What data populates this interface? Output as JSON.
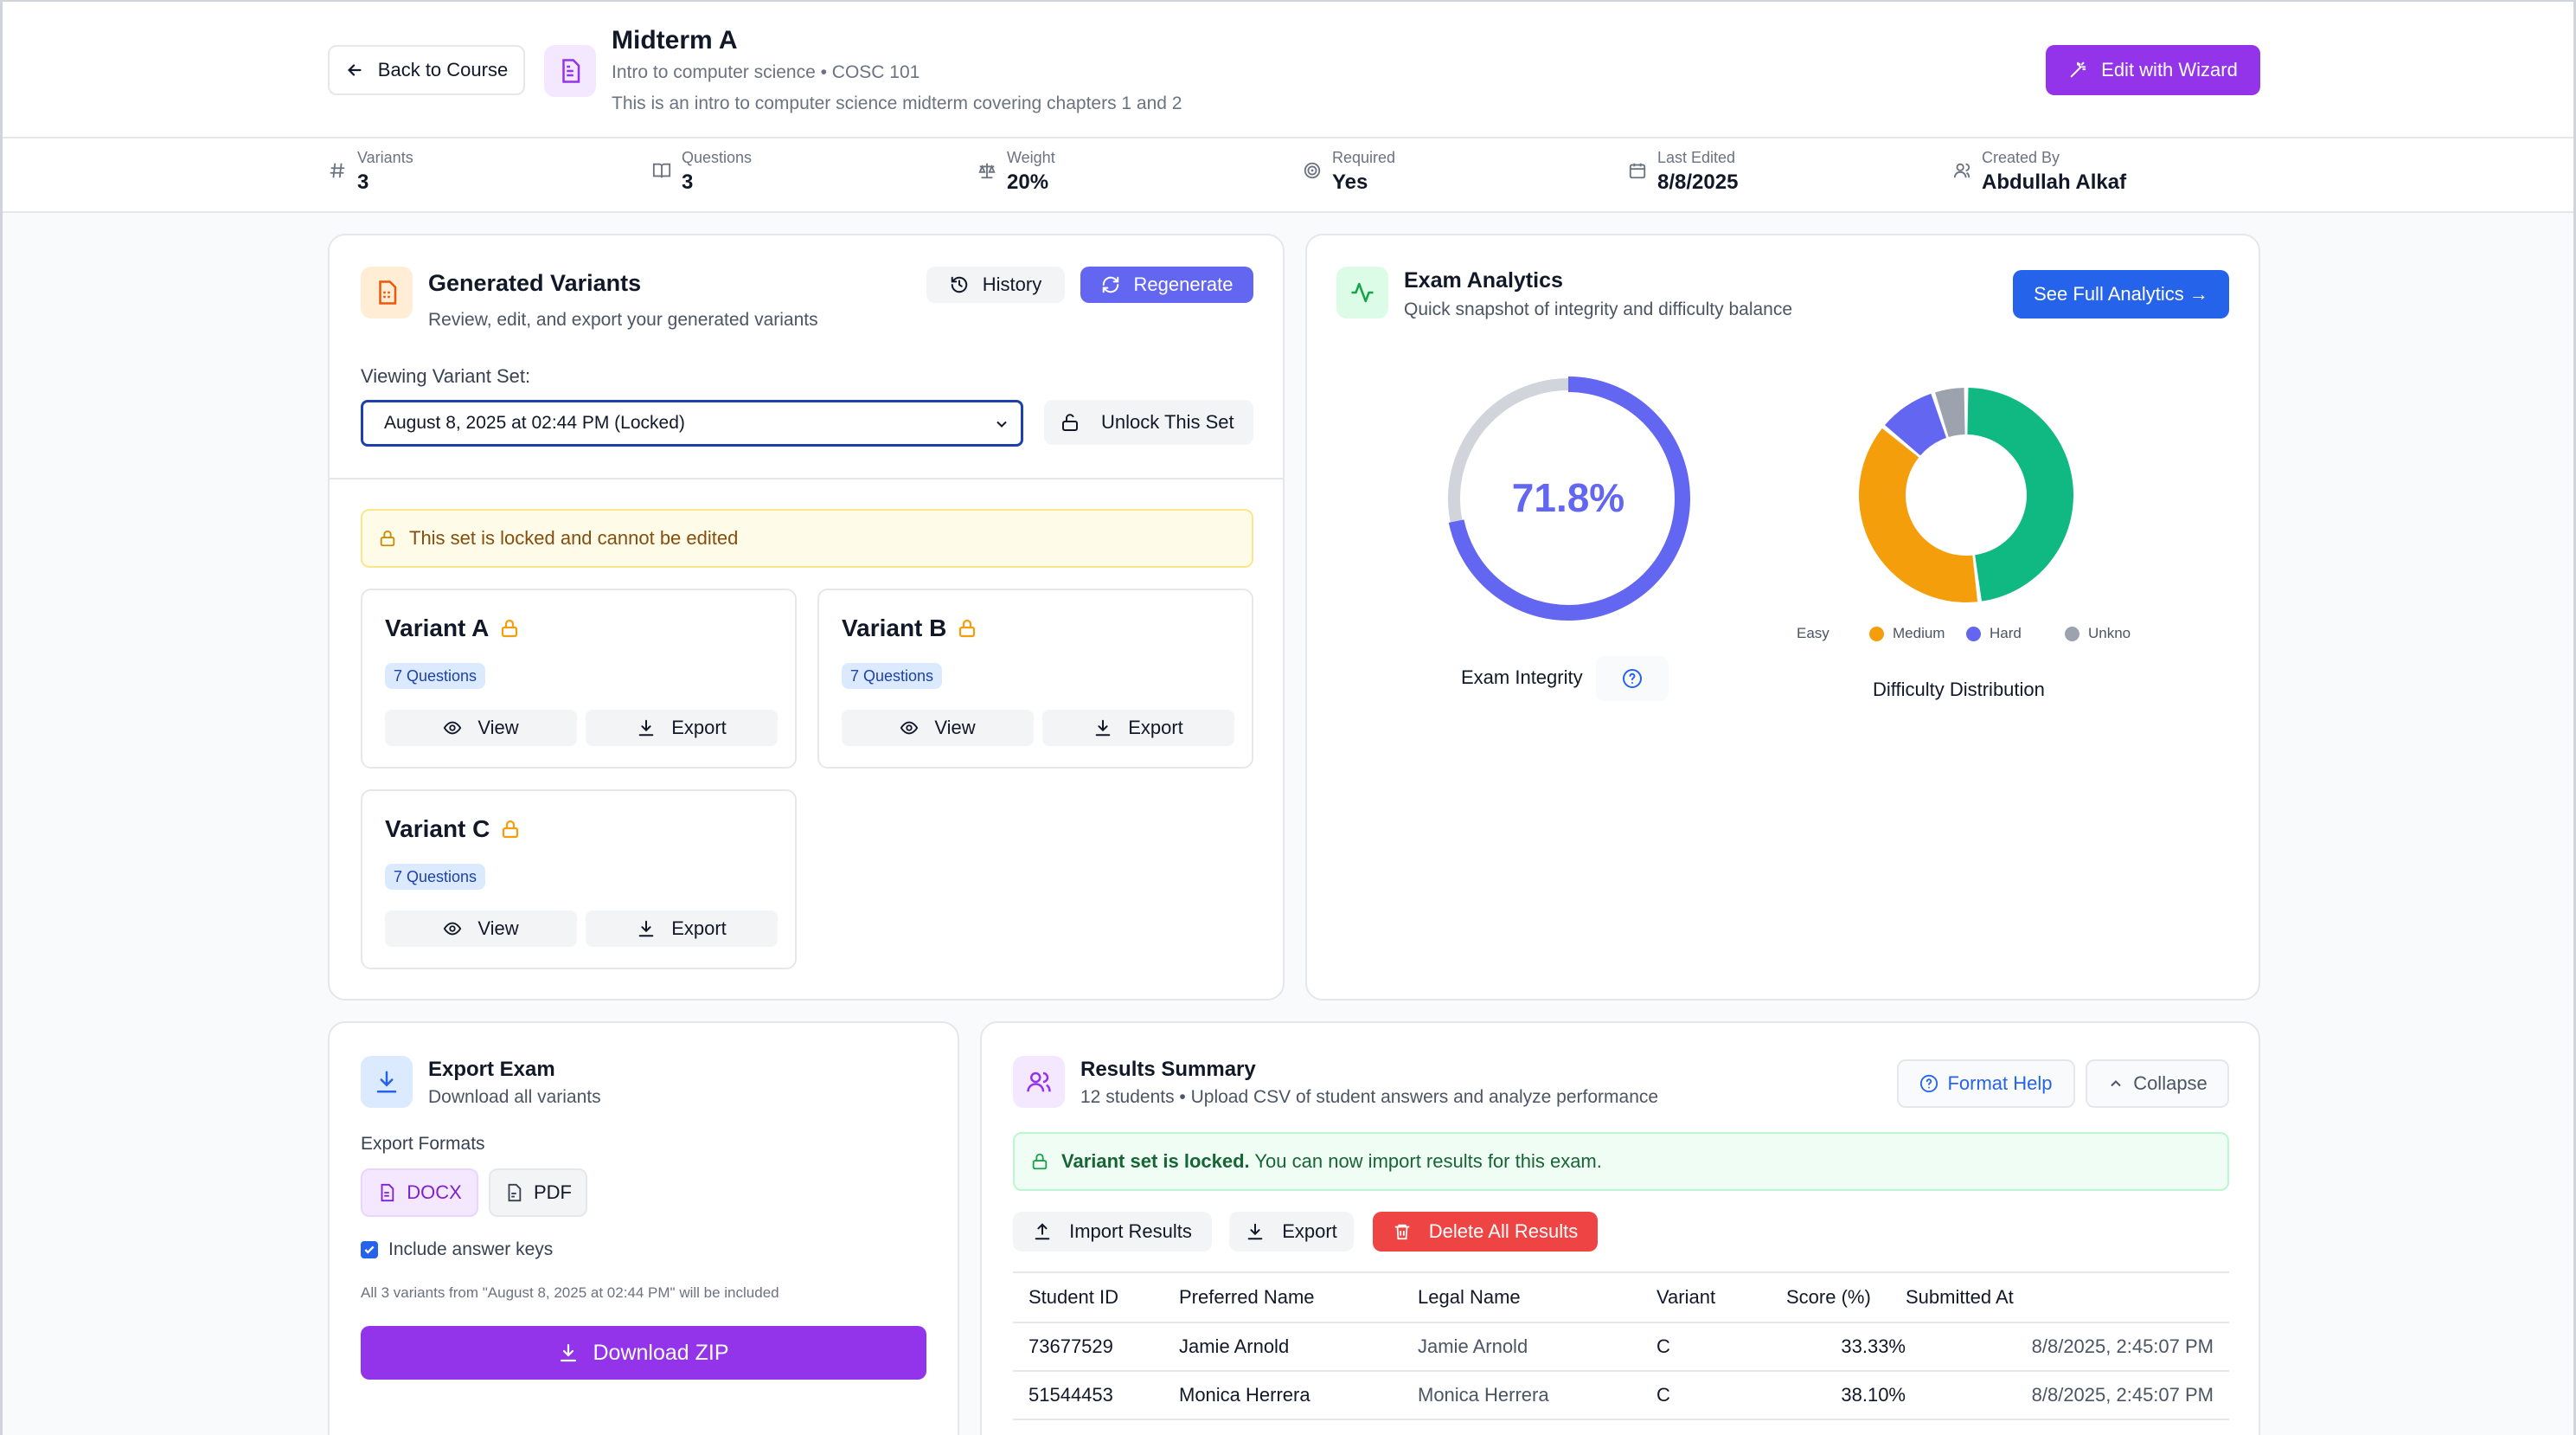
{
  "header": {
    "back_label": "Back to Course",
    "title": "Midterm A",
    "subtitle": "Intro to computer science • COSC 101",
    "description": "This is an intro to computer science midterm covering chapters 1 and 2",
    "wizard_label": "Edit with Wizard"
  },
  "stats": [
    {
      "label": "Variants",
      "value": "3",
      "icon": "hash-icon"
    },
    {
      "label": "Questions",
      "value": "3",
      "icon": "book-icon"
    },
    {
      "label": "Weight",
      "value": "20%",
      "icon": "scale-icon"
    },
    {
      "label": "Required",
      "value": "Yes",
      "icon": "target-icon"
    },
    {
      "label": "Last Edited",
      "value": "8/8/2025",
      "icon": "calendar-icon"
    },
    {
      "label": "Created By",
      "value": "Abdullah Alkaf",
      "icon": "user-icon"
    }
  ],
  "variants_panel": {
    "title": "Generated Variants",
    "subtitle": "Review, edit, and export your generated variants",
    "history_label": "History",
    "regenerate_label": "Regenerate",
    "viewing_label": "Viewing Variant Set:",
    "selected_set": "August 8, 2025 at 02:44 PM (Locked)",
    "unlock_label": "Unlock This Set",
    "locked_notice": "This set is locked and cannot be edited",
    "variants": [
      {
        "name": "Variant A",
        "questions": "7 Questions",
        "view": "View",
        "export": "Export"
      },
      {
        "name": "Variant B",
        "questions": "7 Questions",
        "view": "View",
        "export": "Export"
      },
      {
        "name": "Variant C",
        "questions": "7 Questions",
        "view": "View",
        "export": "Export"
      }
    ]
  },
  "analytics": {
    "title": "Exam Analytics",
    "subtitle": "Quick snapshot of integrity and difficulty balance",
    "full_label": "See Full Analytics →",
    "integrity_value": "71.8%",
    "integrity_fraction": 0.718,
    "integrity_label": "Exam Integrity",
    "difficulty_label": "Difficulty Distribution",
    "legend": [
      {
        "name": "Easy",
        "color": "#10b981"
      },
      {
        "name": "Medium",
        "color": "#f59e0b"
      },
      {
        "name": "Hard",
        "color": "#6366f1"
      },
      {
        "name": "Unkno",
        "color": "#9ca3af"
      }
    ],
    "colors": {
      "accent": "#6366f1",
      "track": "#d1d5db"
    }
  },
  "chart_data": {
    "type": "pie",
    "title": "Difficulty Distribution",
    "categories": [
      "Easy",
      "Medium",
      "Hard",
      "Unknown"
    ],
    "values": [
      48,
      38,
      9,
      5
    ],
    "colors": [
      "#10b981",
      "#f59e0b",
      "#6366f1",
      "#9ca3af"
    ],
    "legend": "bottom"
  },
  "export_panel": {
    "title": "Export Exam",
    "subtitle": "Download all variants",
    "formats_label": "Export Formats",
    "docx_label": "DOCX",
    "pdf_label": "PDF",
    "answer_keys_label": "Include answer keys",
    "answer_keys_checked": true,
    "note": "All 3 variants from \"August 8, 2025 at 02:44 PM\" will be included",
    "download_label": "Download ZIP"
  },
  "results": {
    "title": "Results Summary",
    "subtitle": "12 students • Upload CSV of student answers and analyze performance",
    "format_help_label": "Format Help",
    "collapse_label": "Collapse",
    "locked_bold": "Variant set is locked.",
    "locked_text": " You can now import results for this exam.",
    "import_label": "Import Results",
    "export_label": "Export",
    "delete_label": "Delete All Results",
    "columns": [
      "Student ID",
      "Preferred Name",
      "Legal Name",
      "Variant",
      "Score (%)",
      "Submitted At"
    ],
    "rows": [
      [
        "73677529",
        "Jamie Arnold",
        "Jamie Arnold",
        "C",
        "33.33%",
        "8/8/2025, 2:45:07 PM"
      ],
      [
        "51544453",
        "Monica Herrera",
        "Monica Herrera",
        "C",
        "38.10%",
        "8/8/2025, 2:45:07 PM"
      ]
    ]
  }
}
